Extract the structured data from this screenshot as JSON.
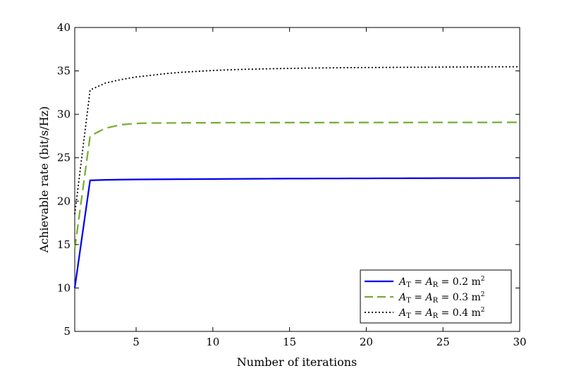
{
  "chart_data": {
    "type": "line",
    "title": "",
    "xlabel": "Number of iterations",
    "ylabel": "Achievable rate (bit/s/Hz)",
    "xlim": [
      1,
      30
    ],
    "ylim": [
      5,
      40
    ],
    "xticks": [
      5,
      10,
      15,
      20,
      25,
      30
    ],
    "yticks": [
      5,
      10,
      15,
      20,
      25,
      30,
      35,
      40
    ],
    "x": [
      1,
      2,
      3,
      4,
      5,
      6,
      7,
      8,
      9,
      10,
      11,
      12,
      13,
      14,
      15,
      16,
      17,
      18,
      19,
      20,
      21,
      22,
      23,
      24,
      25,
      26,
      27,
      28,
      29,
      30
    ],
    "series": [
      {
        "name": "A_T = A_R = 0.2 m^2",
        "legend": {
          "a": "A",
          "t": "T",
          "eq": " = ",
          "r": "R",
          "rest": " = 0.2 m",
          "sup": "2"
        },
        "color": "#0000ee",
        "style": "solid",
        "values": [
          10.0,
          22.4,
          22.45,
          22.48,
          22.5,
          22.51,
          22.52,
          22.53,
          22.54,
          22.55,
          22.56,
          22.57,
          22.58,
          22.59,
          22.6,
          22.6,
          22.61,
          22.61,
          22.62,
          22.62,
          22.63,
          22.63,
          22.64,
          22.64,
          22.65,
          22.65,
          22.65,
          22.66,
          22.66,
          22.67
        ]
      },
      {
        "name": "A_T = A_R = 0.3 m^2",
        "legend": {
          "a": "A",
          "t": "T",
          "eq": " = ",
          "r": "R",
          "rest": " = 0.3 m",
          "sup": "2"
        },
        "color": "#77ac30",
        "style": "dashed",
        "values": [
          14.5,
          27.5,
          28.4,
          28.8,
          28.95,
          29.0,
          29.0,
          29.02,
          29.03,
          29.03,
          29.04,
          29.04,
          29.04,
          29.05,
          29.05,
          29.05,
          29.05,
          29.05,
          29.06,
          29.06,
          29.06,
          29.06,
          29.06,
          29.07,
          29.07,
          29.07,
          29.07,
          29.07,
          29.08,
          29.08
        ]
      },
      {
        "name": "A_T = A_R = 0.4 m^2",
        "legend": {
          "a": "A",
          "t": "T",
          "eq": " = ",
          "r": "R",
          "rest": " = 0.4 m",
          "sup": "2"
        },
        "color": "#000000",
        "style": "dotted",
        "values": [
          18.5,
          32.8,
          33.6,
          34.0,
          34.3,
          34.5,
          34.7,
          34.85,
          34.95,
          35.05,
          35.12,
          35.18,
          35.22,
          35.26,
          35.29,
          35.32,
          35.34,
          35.36,
          35.38,
          35.39,
          35.4,
          35.41,
          35.42,
          35.43,
          35.44,
          35.45,
          35.46,
          35.47,
          35.47,
          35.48
        ]
      }
    ],
    "legend_position": "bottom-right",
    "grid": false
  }
}
